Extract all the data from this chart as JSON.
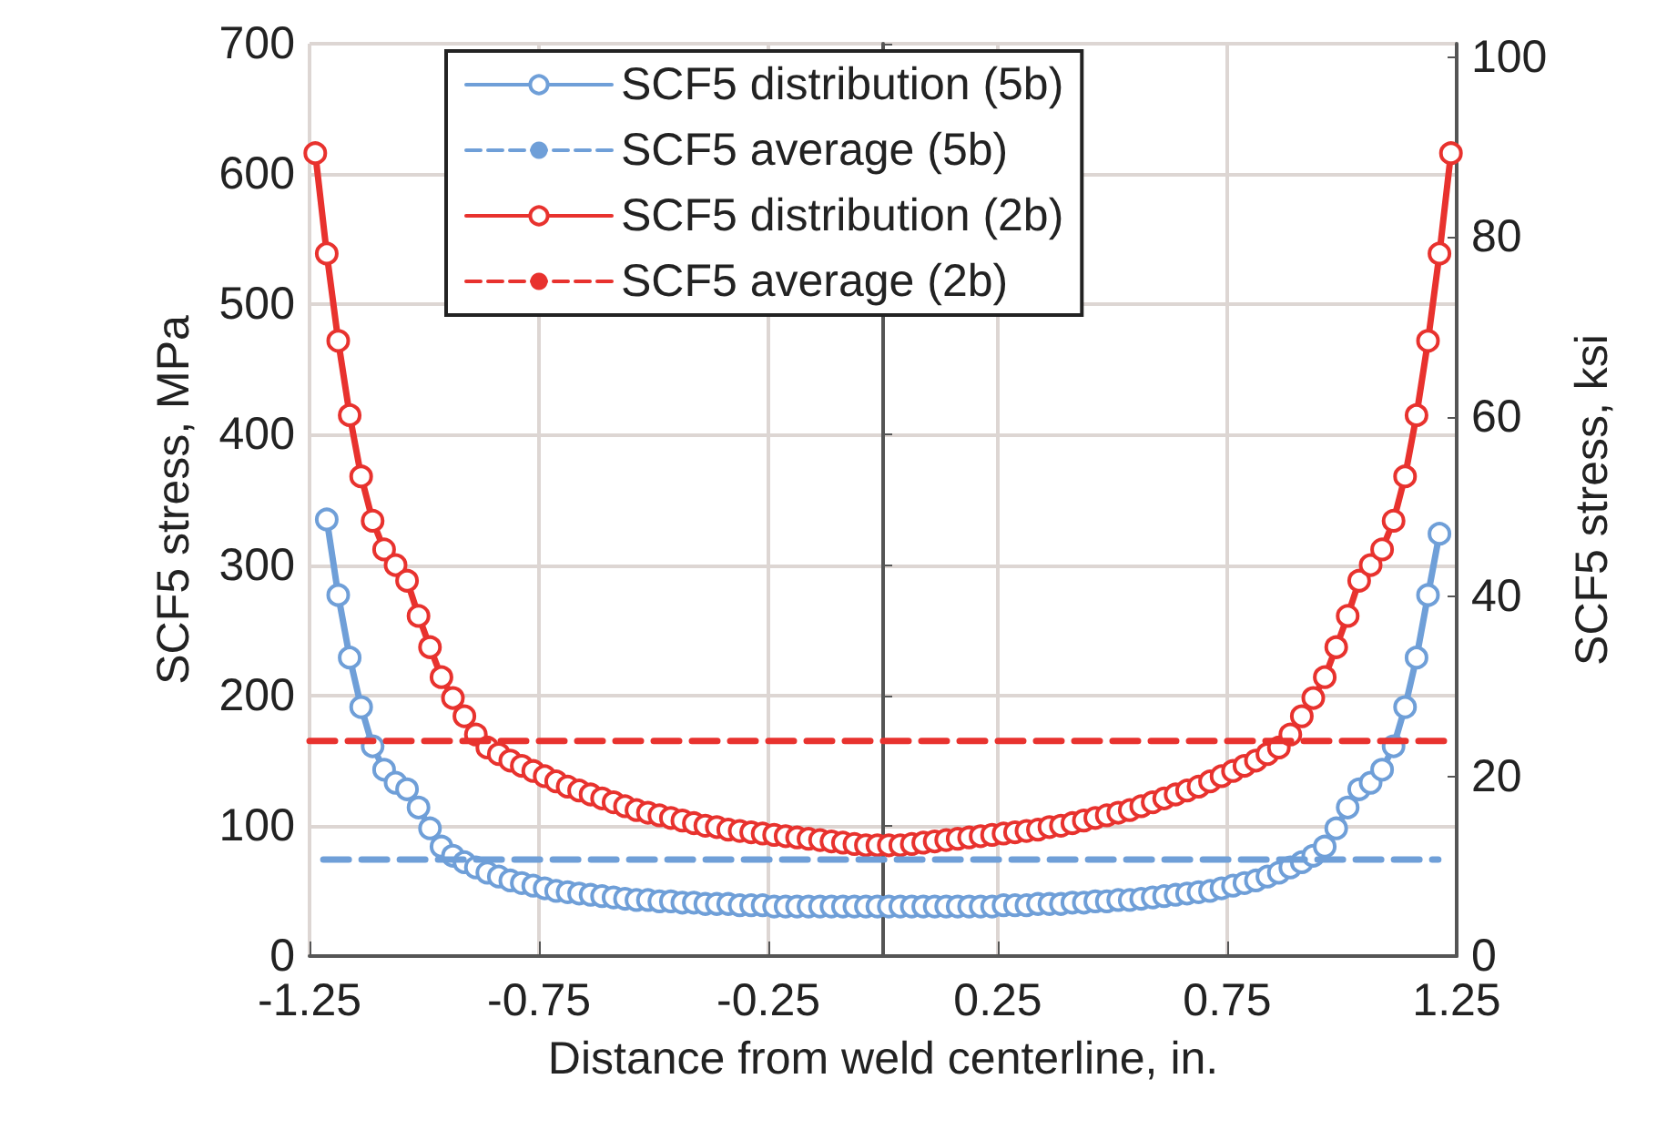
{
  "chart_data": {
    "type": "line",
    "xlabel": "Distance from weld centerline, in.",
    "ylabel": "SCF5 stress, MPa",
    "y2label": "SCF5 stress, ksi",
    "xlim": [
      -1.25,
      1.25
    ],
    "xticks": [
      -1.25,
      -0.75,
      -0.25,
      0.25,
      0.75,
      1.25
    ],
    "ylim": [
      0,
      700
    ],
    "yticks": [
      0,
      100,
      200,
      300,
      400,
      500,
      600,
      700
    ],
    "y2lim": [
      0,
      101.5
    ],
    "y2ticks": [
      0,
      20,
      40,
      60,
      80,
      100
    ],
    "grid": true,
    "legend": "top",
    "series": [
      {
        "name": "SCF5 distribution (5b)",
        "color": "#6f9fd8",
        "marker": "circle",
        "line_style": "solid",
        "x": [
          -1.2125,
          -1.1875,
          -1.1625,
          -1.1375,
          -1.1125,
          -1.0875,
          -1.0625,
          -1.0375,
          -1.0125,
          -0.9875,
          -0.9625,
          -0.9375,
          -0.9125,
          -0.8875,
          -0.8625,
          -0.8375,
          -0.8125,
          -0.7875,
          -0.7625,
          -0.7375,
          -0.7125,
          -0.6875,
          -0.6625,
          -0.6375,
          -0.6125,
          -0.5875,
          -0.5625,
          -0.5375,
          -0.5125,
          -0.4875,
          -0.4625,
          -0.4375,
          -0.4125,
          -0.3875,
          -0.3625,
          -0.3375,
          -0.3125,
          -0.2875,
          -0.2625,
          -0.2375,
          -0.2125,
          -0.1875,
          -0.1625,
          -0.1375,
          -0.1125,
          -0.0875,
          -0.0625,
          -0.0375,
          -0.0125,
          0.0125,
          0.0375,
          0.0625,
          0.0875,
          0.1125,
          0.1375,
          0.1625,
          0.1875,
          0.2125,
          0.2375,
          0.2625,
          0.2875,
          0.3125,
          0.3375,
          0.3625,
          0.3875,
          0.4125,
          0.4375,
          0.4625,
          0.4875,
          0.5125,
          0.5375,
          0.5625,
          0.5875,
          0.6125,
          0.6375,
          0.6625,
          0.6875,
          0.7125,
          0.7375,
          0.7625,
          0.7875,
          0.8125,
          0.8375,
          0.8625,
          0.8875,
          0.9125,
          0.9375,
          0.9625,
          0.9875,
          1.0125,
          1.0375,
          1.0625,
          1.0875,
          1.1125,
          1.1375,
          1.1625,
          1.1875,
          1.2125
        ],
        "values": [
          335,
          277,
          229,
          191,
          161,
          143,
          133,
          128,
          114,
          98,
          84,
          77,
          72,
          68,
          64,
          61,
          58,
          56,
          54,
          52,
          50,
          49,
          48,
          47,
          46,
          45,
          44,
          43,
          43,
          42,
          42,
          41,
          41,
          40,
          40,
          40,
          39,
          39,
          39,
          38,
          38,
          38,
          38,
          38,
          38,
          38,
          38,
          38,
          38,
          38,
          38,
          38,
          38,
          38,
          38,
          38,
          38,
          38,
          38,
          39,
          39,
          39,
          40,
          40,
          40,
          41,
          41,
          42,
          42,
          43,
          43,
          44,
          45,
          46,
          47,
          48,
          49,
          50,
          52,
          54,
          56,
          58,
          61,
          64,
          68,
          72,
          77,
          84,
          98,
          114,
          128,
          133,
          143,
          161,
          191,
          229,
          277,
          324
        ]
      },
      {
        "name": "SCF5 average (5b)",
        "color": "#6f9fd8",
        "marker": "none",
        "line_style": "dashed",
        "x": [
          -1.22,
          1.21
        ],
        "values": [
          74,
          74
        ]
      },
      {
        "name": "SCF5 distribution (2b)",
        "color": "#e8322e",
        "marker": "circle",
        "line_style": "solid",
        "x": [
          -1.2375,
          -1.2125,
          -1.1875,
          -1.1625,
          -1.1375,
          -1.1125,
          -1.0875,
          -1.0625,
          -1.0375,
          -1.0125,
          -0.9875,
          -0.9625,
          -0.9375,
          -0.9125,
          -0.8875,
          -0.8625,
          -0.8375,
          -0.8125,
          -0.7875,
          -0.7625,
          -0.7375,
          -0.7125,
          -0.6875,
          -0.6625,
          -0.6375,
          -0.6125,
          -0.5875,
          -0.5625,
          -0.5375,
          -0.5125,
          -0.4875,
          -0.4625,
          -0.4375,
          -0.4125,
          -0.3875,
          -0.3625,
          -0.3375,
          -0.3125,
          -0.2875,
          -0.2625,
          -0.2375,
          -0.2125,
          -0.1875,
          -0.1625,
          -0.1375,
          -0.1125,
          -0.0875,
          -0.0625,
          -0.0375,
          -0.0125,
          0.0125,
          0.0375,
          0.0625,
          0.0875,
          0.1125,
          0.1375,
          0.1625,
          0.1875,
          0.2125,
          0.2375,
          0.2625,
          0.2875,
          0.3125,
          0.3375,
          0.3625,
          0.3875,
          0.4125,
          0.4375,
          0.4625,
          0.4875,
          0.5125,
          0.5375,
          0.5625,
          0.5875,
          0.6125,
          0.6375,
          0.6625,
          0.6875,
          0.7125,
          0.7375,
          0.7625,
          0.7875,
          0.8125,
          0.8375,
          0.8625,
          0.8875,
          0.9125,
          0.9375,
          0.9625,
          0.9875,
          1.0125,
          1.0375,
          1.0625,
          1.0875,
          1.1125,
          1.1375,
          1.1625,
          1.1875,
          1.2125,
          1.2375
        ],
        "values": [
          616,
          539,
          472,
          415,
          368,
          334,
          312,
          300,
          288,
          261,
          237,
          214,
          198,
          184,
          170,
          160,
          155,
          150,
          146,
          142,
          138,
          134,
          130,
          127,
          124,
          121,
          118,
          115,
          112,
          110,
          108,
          106,
          104,
          102,
          100,
          99,
          97,
          96,
          95,
          94,
          93,
          92,
          91,
          90,
          89,
          88,
          87,
          86,
          85,
          85,
          85,
          85,
          86,
          87,
          88,
          89,
          90,
          91,
          92,
          93,
          94,
          95,
          96,
          97,
          99,
          100,
          102,
          104,
          106,
          108,
          110,
          112,
          115,
          118,
          121,
          124,
          127,
          130,
          134,
          138,
          142,
          146,
          150,
          155,
          160,
          170,
          184,
          198,
          214,
          237,
          261,
          288,
          300,
          312,
          334,
          368,
          415,
          472,
          539,
          616
        ]
      },
      {
        "name": "SCF5 average (2b)",
        "color": "#e8322e",
        "marker": "none",
        "line_style": "dashed",
        "x": [
          -1.25,
          1.25
        ],
        "values": [
          165,
          165
        ]
      }
    ]
  }
}
